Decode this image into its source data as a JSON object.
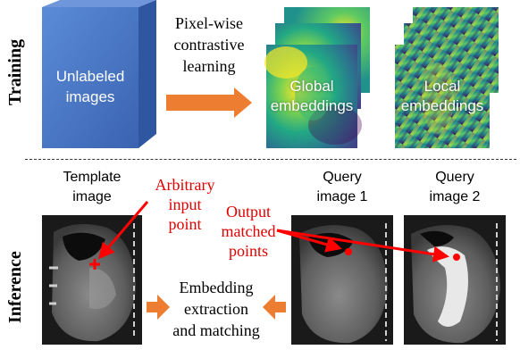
{
  "sections": {
    "training": "Training",
    "inference": "Inference"
  },
  "training": {
    "cube_label_1": "Unlabeled",
    "cube_label_2": "images",
    "method_1": "Pixel-wise",
    "method_2": "contrastive",
    "method_3": "learning",
    "global_1": "Global",
    "global_2": "embeddings",
    "local_1": "Local",
    "local_2": "embeddings"
  },
  "inference": {
    "template_1": "Template",
    "template_2": "image",
    "arbitrary_1": "Arbitrary",
    "arbitrary_2": "input",
    "arbitrary_3": "point",
    "query1_1": "Query",
    "query1_2": "image 1",
    "query2_1": "Query",
    "query2_2": "image 2",
    "output_1": "Output",
    "output_2": "matched",
    "output_3": "points",
    "extract_1": "Embedding",
    "extract_2": "extraction",
    "extract_3": "and matching"
  },
  "colors": {
    "cube_front": "#4472c4",
    "arrow": "#ed7d31",
    "marker": "#ff0000"
  }
}
